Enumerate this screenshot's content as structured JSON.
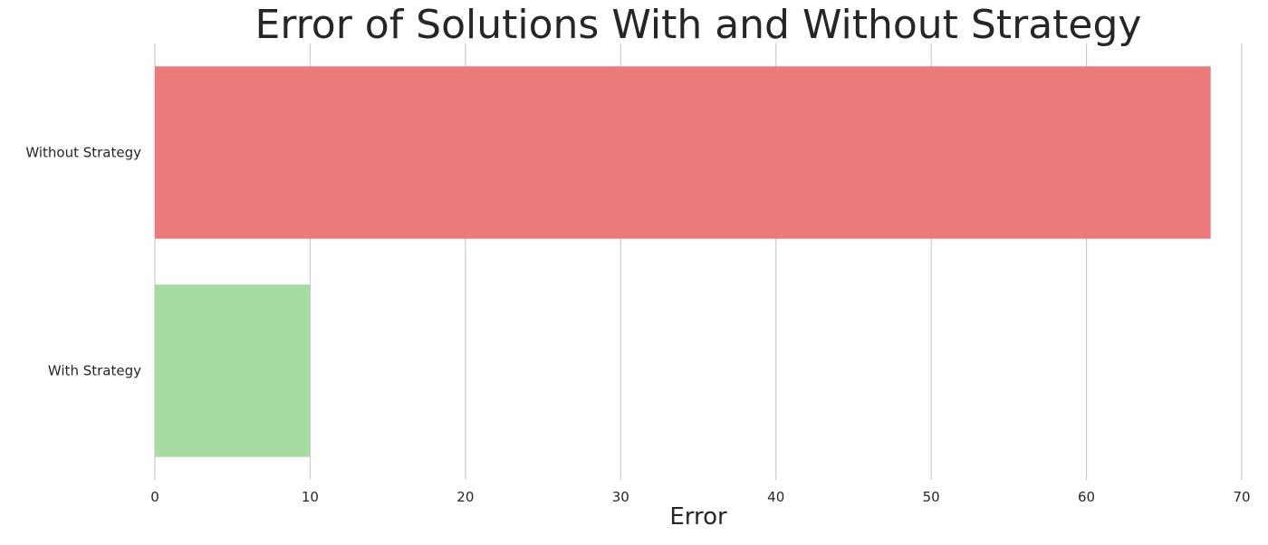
{
  "chart_data": {
    "type": "bar",
    "orientation": "horizontal",
    "title": "Error of Solutions With and Without Strategy",
    "xlabel": "Error",
    "ylabel": "",
    "categories": [
      "Without Strategy",
      "With Strategy"
    ],
    "values": [
      68,
      10
    ],
    "colors": [
      "#ec7a7a",
      "#a6dba2"
    ],
    "xlim": [
      0,
      70
    ],
    "xticks": [
      0,
      10,
      20,
      30,
      40,
      50,
      60,
      70
    ],
    "grid": "vertical",
    "grid_color": "#cccccc",
    "legend": "none"
  }
}
